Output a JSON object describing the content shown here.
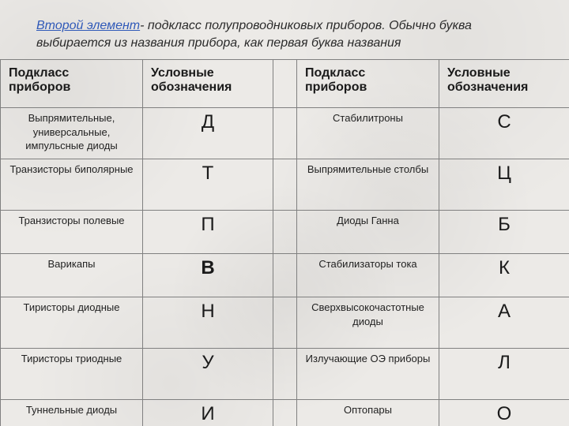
{
  "title": {
    "lead": "Второй элемент",
    "rest": "- подкласс полупроводниковых приборов. Обычно буква выбирается из названия прибора, как первая буква названия"
  },
  "headers": {
    "col1": "Подкласс приборов",
    "col2": "Условные обозначения",
    "col3": "Подкласс приборов",
    "col4": "Условные обозначения"
  },
  "rows": [
    {
      "l_name": "Выпрямительные, универсальные, импульсные диоды",
      "l_letter": "Д",
      "l_bold": false,
      "r_name": "Стабилитроны",
      "r_letter": "С",
      "r_bold": false,
      "tall": true
    },
    {
      "l_name": "Транзисторы биполярные",
      "l_letter": "Т",
      "l_bold": false,
      "r_name": "Выпрямительные столбы",
      "r_letter": "Ц",
      "r_bold": false,
      "tall": true
    },
    {
      "l_name": "Транзисторы полевые",
      "l_letter": "П",
      "l_bold": false,
      "r_name": "Диоды Ганна",
      "r_letter": "Б",
      "r_bold": false,
      "tall": false
    },
    {
      "l_name": "Варикапы",
      "l_letter": "В",
      "l_bold": true,
      "r_name": "Стабилизаторы тока",
      "r_letter": "К",
      "r_bold": false,
      "tall": false
    },
    {
      "l_name": "Тиристоры диодные",
      "l_letter": "Н",
      "l_bold": false,
      "r_name": "Сверхвысокочастотные диоды",
      "r_letter": "А",
      "r_bold": false,
      "tall": true
    },
    {
      "l_name": "Тиристоры триодные",
      "l_letter": "У",
      "l_bold": false,
      "r_name": "Излучающие   ОЭ приборы",
      "r_letter": "Л",
      "r_bold": false,
      "tall": true
    },
    {
      "l_name": "Туннельные диоды",
      "l_letter": "И",
      "l_bold": false,
      "r_name": "Оптопары",
      "r_letter": "О",
      "r_bold": false,
      "tall": false
    }
  ]
}
